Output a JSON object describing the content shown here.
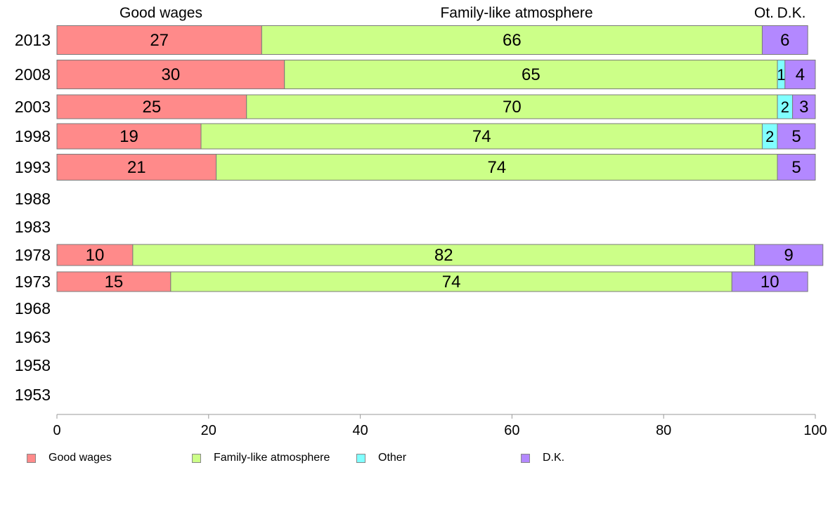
{
  "chart_data": {
    "type": "bar",
    "orientation": "horizontal",
    "stacked": true,
    "categories": [
      "2013",
      "2008",
      "2003",
      "1998",
      "1993",
      "1988",
      "1983",
      "1978",
      "1973",
      "1968",
      "1963",
      "1958",
      "1953"
    ],
    "series": [
      {
        "name": "Good wages",
        "color": "#ff8a8a",
        "values": [
          27,
          30,
          25,
          19,
          21,
          null,
          null,
          10,
          15,
          null,
          null,
          null,
          null
        ]
      },
      {
        "name": "Family-like atmosphere",
        "color": "#ccff88",
        "values": [
          66,
          65,
          70,
          74,
          74,
          null,
          null,
          82,
          74,
          null,
          null,
          null,
          null
        ]
      },
      {
        "name": "Other",
        "color": "#80ffff",
        "values": [
          0,
          1,
          2,
          2,
          0,
          null,
          null,
          0,
          0,
          null,
          null,
          null,
          null
        ]
      },
      {
        "name": "D.K.",
        "color": "#b388ff",
        "values": [
          6,
          4,
          3,
          5,
          5,
          null,
          null,
          9,
          10,
          null,
          null,
          null,
          null
        ]
      }
    ],
    "data_labels": [
      [
        "27",
        "66",
        "",
        "6"
      ],
      [
        "30",
        "65",
        "1",
        "4"
      ],
      [
        "25",
        "70",
        "2",
        "3"
      ],
      [
        "19",
        "74",
        "2",
        "5"
      ],
      [
        "21",
        "74",
        "",
        "5"
      ],
      null,
      null,
      [
        "10",
        "82",
        "",
        "9"
      ],
      [
        "15",
        "74",
        "",
        "10"
      ],
      null,
      null,
      null,
      null
    ],
    "top_labels": [
      "Good wages",
      "Family-like atmosphere",
      "Ot.",
      "D.K."
    ],
    "xlim": [
      0,
      100
    ],
    "xticks": [
      "0",
      "20",
      "40",
      "60",
      "80",
      "100"
    ],
    "grid": false,
    "legend_position": "bottom",
    "legend": [
      "Good wages",
      "Family-like atmosphere",
      "Other",
      "D.K."
    ]
  }
}
